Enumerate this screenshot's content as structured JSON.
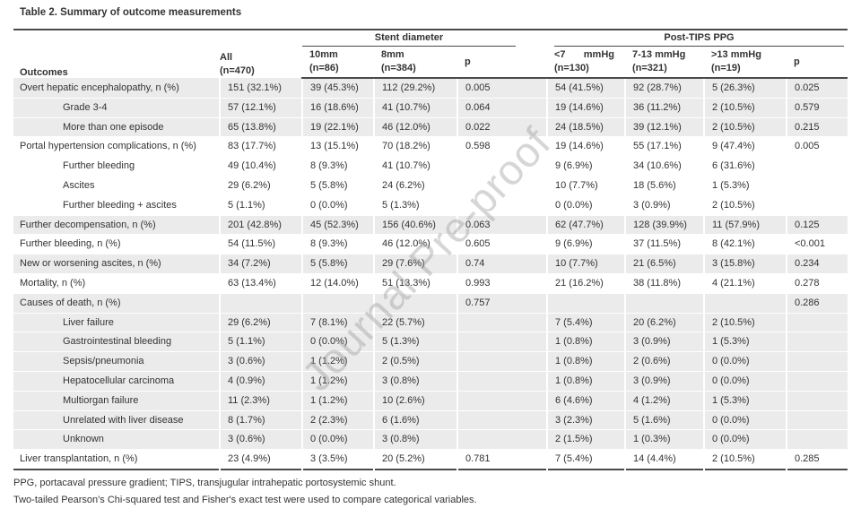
{
  "title": "Table 2. Summary of outcome measurements",
  "watermark": "Journal Pre-proof",
  "colors": {
    "stripe": "#ebebeb",
    "rule": "#4a4a4a",
    "text": "#333333",
    "watermark": "#9e9e9e"
  },
  "header": {
    "outcomes": "Outcomes",
    "all_line1": "All",
    "all_line2": "(n=470)",
    "stent_group": "Stent diameter",
    "ppg_group": "Post-TIPS PPG",
    "cols": [
      {
        "l1": "10mm",
        "l2": "(n=86)"
      },
      {
        "l1": "8mm",
        "l2": "(n=384)"
      },
      {
        "l1": "p",
        "l2": ""
      },
      {
        "l1": "<7 mmHg",
        "l2": "(n=130)"
      },
      {
        "l1": "7-13 mmHg",
        "l2": "(n=321)"
      },
      {
        "l1": ">13 mmHg",
        "l2": "(n=19)"
      },
      {
        "l1": "p",
        "l2": ""
      }
    ]
  },
  "rows": [
    {
      "label": "Overt hepatic encephalopathy, n (%)",
      "indent": false,
      "shade": true,
      "cells": [
        "151 (32.1%)",
        "39 (45.3%)",
        "112 (29.2%)",
        "0.005",
        "54 (41.5%)",
        "92 (28.7%)",
        "5 (26.3%)",
        "0.025"
      ]
    },
    {
      "label": "Grade 3-4",
      "indent": true,
      "shade": true,
      "cells": [
        "57 (12.1%)",
        "16 (18.6%)",
        "41 (10.7%)",
        "0.064",
        "19 (14.6%)",
        "36 (11.2%)",
        "2 (10.5%)",
        "0.579"
      ]
    },
    {
      "label": "More than one episode",
      "indent": true,
      "shade": true,
      "cells": [
        "65 (13.8%)",
        "19 (22.1%)",
        "46 (12.0%)",
        "0.022",
        "24 (18.5%)",
        "39 (12.1%)",
        "2 (10.5%)",
        "0.215"
      ]
    },
    {
      "label": "Portal hypertension complications, n (%)",
      "indent": false,
      "shade": false,
      "cells": [
        "83 (17.7%)",
        "13 (15.1%)",
        "70 (18.2%)",
        "0.598",
        "19 (14.6%)",
        "55 (17.1%)",
        "9 (47.4%)",
        "0.005"
      ]
    },
    {
      "label": "Further bleeding",
      "indent": true,
      "shade": false,
      "cells": [
        "49 (10.4%)",
        "8 (9.3%)",
        "41 (10.7%)",
        "",
        "9 (6.9%)",
        "34 (10.6%)",
        "6 (31.6%)",
        ""
      ]
    },
    {
      "label": "Ascites",
      "indent": true,
      "shade": false,
      "cells": [
        "29 (6.2%)",
        "5 (5.8%)",
        "24 (6.2%)",
        "",
        "10 (7.7%)",
        "18 (5.6%)",
        "1 (5.3%)",
        ""
      ]
    },
    {
      "label": "Further bleeding + ascites",
      "indent": true,
      "shade": false,
      "cells": [
        "5 (1.1%)",
        "0 (0.0%)",
        "5 (1.3%)",
        "",
        "0 (0.0%)",
        "3 (0.9%)",
        "2 (10.5%)",
        ""
      ]
    },
    {
      "label": "Further decompensation, n (%)",
      "indent": false,
      "shade": true,
      "cells": [
        "201 (42.8%)",
        "45 (52.3%)",
        "156 (40.6%)",
        "0.063",
        "62 (47.7%)",
        "128 (39.9%)",
        "11 (57.9%)",
        "0.125"
      ]
    },
    {
      "label": "Further bleeding, n (%)",
      "indent": false,
      "shade": false,
      "cells": [
        "54 (11.5%)",
        "8 (9.3%)",
        "46 (12.0%)",
        "0.605",
        "9 (6.9%)",
        "37 (11.5%)",
        "8 (42.1%)",
        "<0.001"
      ]
    },
    {
      "label": "New or worsening ascites, n (%)",
      "indent": false,
      "shade": true,
      "cells": [
        "34 (7.2%)",
        "5 (5.8%)",
        "29 (7.6%)",
        "0.74",
        "10 (7.7%)",
        "21 (6.5%)",
        "3 (15.8%)",
        "0.234"
      ]
    },
    {
      "label": "Mortality, n (%)",
      "indent": false,
      "shade": false,
      "cells": [
        "63 (13.4%)",
        "12 (14.0%)",
        "51 (13.3%)",
        "0.993",
        "21 (16.2%)",
        "38 (11.8%)",
        "4 (21.1%)",
        "0.278"
      ]
    },
    {
      "label": "Causes of death, n (%)",
      "indent": false,
      "shade": true,
      "cells": [
        "",
        "",
        "",
        "0.757",
        "",
        "",
        "",
        "0.286"
      ]
    },
    {
      "label": "Liver failure",
      "indent": true,
      "shade": true,
      "cells": [
        "29 (6.2%)",
        "7 (8.1%)",
        "22 (5.7%)",
        "",
        "7 (5.4%)",
        "20 (6.2%)",
        "2 (10.5%)",
        ""
      ]
    },
    {
      "label": "Gastrointestinal bleeding",
      "indent": true,
      "shade": true,
      "cells": [
        "5 (1.1%)",
        "0 (0.0%)",
        "5 (1.3%)",
        "",
        "1 (0.8%)",
        "3 (0.9%)",
        "1 (5.3%)",
        ""
      ]
    },
    {
      "label": "Sepsis/pneumonia",
      "indent": true,
      "shade": true,
      "cells": [
        "3 (0.6%)",
        "1 (1.2%)",
        "2 (0.5%)",
        "",
        "1 (0.8%)",
        "2 (0.6%)",
        "0 (0.0%)",
        ""
      ]
    },
    {
      "label": "Hepatocellular carcinoma",
      "indent": true,
      "shade": true,
      "cells": [
        "4 (0.9%)",
        "1 (1.2%)",
        "3 (0.8%)",
        "",
        "1 (0.8%)",
        "3 (0.9%)",
        "0 (0.0%)",
        ""
      ]
    },
    {
      "label": "Multiorgan failure",
      "indent": true,
      "shade": true,
      "cells": [
        "11 (2.3%)",
        "1 (1.2%)",
        "10 (2.6%)",
        "",
        "6 (4.6%)",
        "4 (1.2%)",
        "1 (5.3%)",
        ""
      ]
    },
    {
      "label": "Unrelated with liver disease",
      "indent": true,
      "shade": true,
      "cells": [
        "8 (1.7%)",
        "2 (2.3%)",
        "6 (1.6%)",
        "",
        "3 (2.3%)",
        "5 (1.6%)",
        "0 (0.0%)",
        ""
      ]
    },
    {
      "label": "Unknown",
      "indent": true,
      "shade": true,
      "cells": [
        "3 (0.6%)",
        "0 (0.0%)",
        "3 (0.8%)",
        "",
        "2 (1.5%)",
        "1 (0.3%)",
        "0 (0.0%)",
        ""
      ]
    },
    {
      "label": "Liver transplantation, n (%)",
      "indent": false,
      "shade": false,
      "cells": [
        "23 (4.9%)",
        "3 (3.5%)",
        "20 (5.2%)",
        "0.781",
        "7 (5.4%)",
        "14 (4.4%)",
        "2 (10.5%)",
        "0.285"
      ]
    }
  ],
  "footnotes": [
    "PPG, portacaval pressure gradient; TIPS, transjugular intrahepatic portosystemic shunt.",
    "Two-tailed Pearson's Chi-squared test and Fisher's exact test were used to compare categorical variables."
  ]
}
